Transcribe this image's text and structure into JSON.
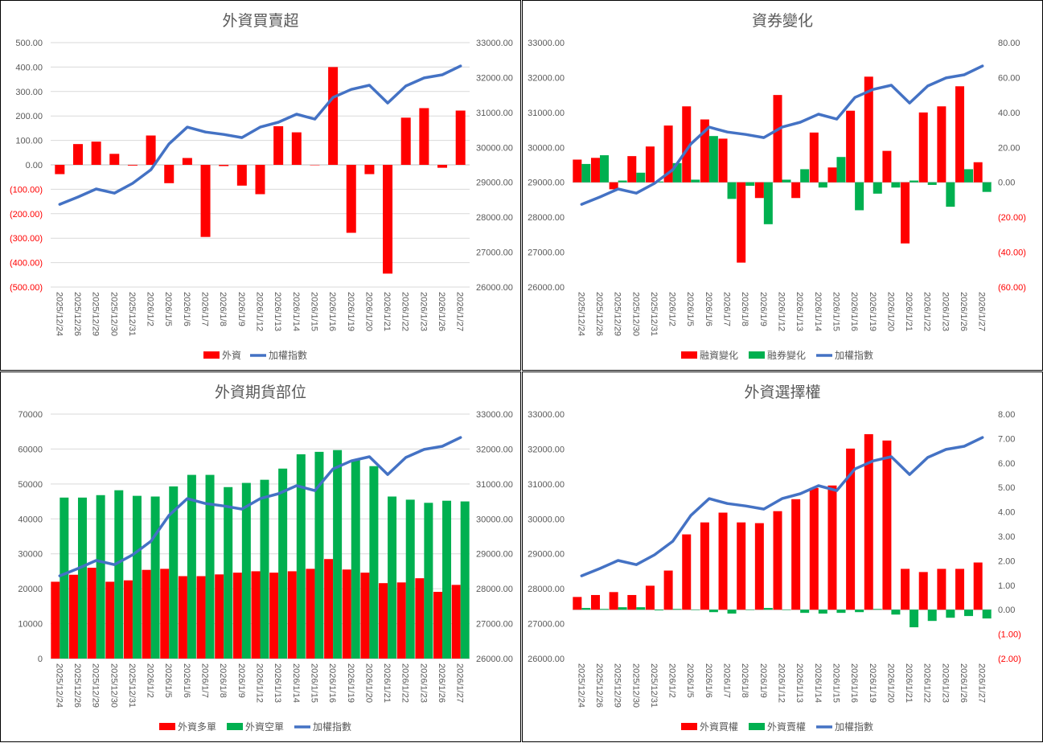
{
  "chart_data": [
    {
      "type": "bar",
      "title": "外資買賣超",
      "categories": [
        "2025/12/24",
        "2025/12/26",
        "2025/12/29",
        "2025/12/30",
        "2025/12/31",
        "2026/1/2",
        "2026/1/5",
        "2026/1/6",
        "2026/1/7",
        "2026/1/8",
        "2026/1/9",
        "2026/1/12",
        "2026/1/13",
        "2026/1/14",
        "2026/1/15",
        "2026/1/16",
        "2026/1/19",
        "2026/1/20",
        "2026/1/21",
        "2026/1/22",
        "2026/1/23",
        "2026/1/26",
        "2026/1/27"
      ],
      "left_axis": {
        "min": -500,
        "max": 500,
        "step": 100,
        "format": "dec2"
      },
      "right_axis": {
        "min": 26000,
        "max": 33000,
        "step": 1000,
        "format": "dec2"
      },
      "grid": true,
      "legend": "bottom",
      "series": [
        {
          "name": "外資",
          "kind": "bar",
          "axis": "left",
          "color": "#FF0000",
          "values": [
            -38,
            85,
            95,
            45,
            -3,
            120,
            -75,
            28,
            -295,
            -5,
            -85,
            -120,
            158,
            133,
            0,
            400,
            -278,
            -38,
            -445,
            193,
            232,
            -12,
            222
          ]
        },
        {
          "name": "加權指數",
          "kind": "line",
          "axis": "right",
          "color": "#4472C4",
          "values": [
            28370,
            28580,
            28810,
            28690,
            28970,
            29360,
            30100,
            30580,
            30440,
            30370,
            30280,
            30580,
            30720,
            30950,
            30810,
            31430,
            31660,
            31780,
            31270,
            31760,
            31990,
            32080,
            32330
          ]
        }
      ]
    },
    {
      "type": "bar",
      "title": "資券變化",
      "categories": [
        "2025/12/24",
        "2025/12/26",
        "2025/12/29",
        "2025/12/30",
        "2025/12/31",
        "2026/1/2",
        "2026/1/5",
        "2026/1/6",
        "2026/1/7",
        "2026/1/8",
        "2026/1/9",
        "2026/1/12",
        "2026/1/13",
        "2026/1/14",
        "2026/1/15",
        "2026/1/16",
        "2026/1/19",
        "2026/1/20",
        "2026/1/21",
        "2026/1/22",
        "2026/1/23",
        "2026/1/26",
        "2026/1/27"
      ],
      "left_axis": {
        "min": 26000,
        "max": 33000,
        "step": 1000,
        "format": "dec2"
      },
      "right_axis": {
        "min": -60,
        "max": 80,
        "step": 20,
        "format": "dec2"
      },
      "grid": false,
      "legend": "bottom",
      "series": [
        {
          "name": "融資變化",
          "kind": "bar",
          "axis": "right",
          "color": "#FF0000",
          "values": [
            13,
            14,
            -4,
            15,
            20.5,
            32.5,
            43.5,
            36,
            25,
            -46,
            -9,
            50,
            -9,
            28.5,
            8.5,
            41,
            60.5,
            18,
            -35,
            40,
            43.5,
            55,
            11.5
          ]
        },
        {
          "name": "融券變化",
          "kind": "bar",
          "axis": "right",
          "color": "#00B050",
          "values": [
            10.5,
            15.5,
            1,
            5.5,
            0.5,
            11,
            1.5,
            26.5,
            -9.5,
            -2,
            -24,
            1.5,
            7.5,
            -3,
            14.5,
            -16,
            -6.5,
            -3,
            1,
            -1.5,
            -14,
            7.5,
            -5.5
          ]
        },
        {
          "name": "加權指數",
          "kind": "line",
          "axis": "left",
          "color": "#4472C4",
          "values": [
            28370,
            28580,
            28810,
            28690,
            28970,
            29360,
            30100,
            30580,
            30440,
            30370,
            30280,
            30580,
            30720,
            30950,
            30810,
            31430,
            31660,
            31780,
            31270,
            31760,
            31990,
            32080,
            32330
          ]
        }
      ]
    },
    {
      "type": "bar",
      "title": "外資期貨部位",
      "categories": [
        "2025/12/24",
        "2025/12/26",
        "2025/12/29",
        "2025/12/30",
        "2025/12/31",
        "2026/1/2",
        "2026/1/5",
        "2026/1/6",
        "2026/1/7",
        "2026/1/8",
        "2026/1/9",
        "2026/1/12",
        "2026/1/13",
        "2026/1/14",
        "2026/1/15",
        "2026/1/16",
        "2026/1/19",
        "2026/1/20",
        "2026/1/21",
        "2026/1/22",
        "2026/1/23",
        "2026/1/26",
        "2026/1/27"
      ],
      "left_axis": {
        "min": 0,
        "max": 70000,
        "step": 10000,
        "format": "int"
      },
      "right_axis": {
        "min": 26000,
        "max": 33000,
        "step": 1000,
        "format": "dec2"
      },
      "grid": true,
      "legend": "bottom",
      "series": [
        {
          "name": "外資多單",
          "kind": "bar",
          "axis": "left",
          "color": "#FF0000",
          "values": [
            22000,
            24000,
            26000,
            22000,
            22400,
            25400,
            25700,
            23600,
            23600,
            24100,
            24600,
            25000,
            24600,
            25000,
            25700,
            28500,
            25500,
            24600,
            21600,
            21800,
            23000,
            19100,
            21100
          ]
        },
        {
          "name": "外資空單",
          "kind": "bar",
          "axis": "left",
          "color": "#00B050",
          "values": [
            46100,
            46100,
            46800,
            48200,
            46600,
            46400,
            49300,
            52600,
            52600,
            49100,
            50300,
            51200,
            54400,
            58500,
            59200,
            59700,
            56900,
            55100,
            46400,
            45500,
            44600,
            45200,
            45000
          ]
        },
        {
          "name": "加權指數",
          "kind": "line",
          "axis": "right",
          "color": "#4472C4",
          "values": [
            28370,
            28580,
            28810,
            28690,
            28970,
            29360,
            30100,
            30580,
            30440,
            30370,
            30280,
            30580,
            30720,
            30950,
            30810,
            31430,
            31660,
            31780,
            31270,
            31760,
            31990,
            32080,
            32330
          ]
        }
      ]
    },
    {
      "type": "bar",
      "title": "外資選擇權",
      "categories": [
        "2025/12/24",
        "2025/12/26",
        "2025/12/29",
        "2025/12/30",
        "2025/12/31",
        "2026/1/2",
        "2026/1/5",
        "2026/1/6",
        "2026/1/7",
        "2026/1/8",
        "2026/1/9",
        "2026/1/12",
        "2026/1/13",
        "2026/1/14",
        "2026/1/15",
        "2026/1/16",
        "2026/1/19",
        "2026/1/20",
        "2026/1/21",
        "2026/1/22",
        "2026/1/23",
        "2026/1/26",
        "2026/1/27"
      ],
      "left_axis": {
        "min": 26000,
        "max": 33000,
        "step": 1000,
        "format": "dec2"
      },
      "right_axis": {
        "min": -2,
        "max": 8,
        "step": 1,
        "format": "dec2"
      },
      "grid": false,
      "legend": "bottom",
      "series": [
        {
          "name": "外資買權",
          "kind": "bar",
          "axis": "right",
          "color": "#FF0000",
          "values": [
            0.52,
            0.6,
            0.72,
            0.6,
            0.98,
            1.6,
            3.08,
            3.57,
            3.97,
            3.57,
            3.54,
            4.03,
            4.52,
            4.98,
            5.08,
            6.59,
            7.18,
            6.92,
            1.67,
            1.54,
            1.67,
            1.67,
            1.93
          ]
        },
        {
          "name": "外資賣權",
          "kind": "bar",
          "axis": "right",
          "color": "#00B050",
          "values": [
            0.07,
            0.03,
            0.1,
            0.1,
            -0.03,
            0.03,
            0,
            -0.1,
            -0.16,
            0,
            0.07,
            0,
            -0.13,
            -0.16,
            -0.13,
            -0.1,
            0.03,
            -0.2,
            -0.72,
            -0.46,
            -0.33,
            -0.26,
            -0.36
          ]
        },
        {
          "name": "加權指數",
          "kind": "line",
          "axis": "left",
          "color": "#4472C4",
          "values": [
            28370,
            28580,
            28810,
            28690,
            28970,
            29360,
            30100,
            30580,
            30440,
            30370,
            30280,
            30580,
            30720,
            30950,
            30810,
            31430,
            31660,
            31780,
            31270,
            31760,
            31990,
            32080,
            32330
          ]
        }
      ]
    }
  ],
  "colors": {
    "negative_tick": "#FF0000",
    "tick": "#595959",
    "grid": "#D9D9D9"
  }
}
